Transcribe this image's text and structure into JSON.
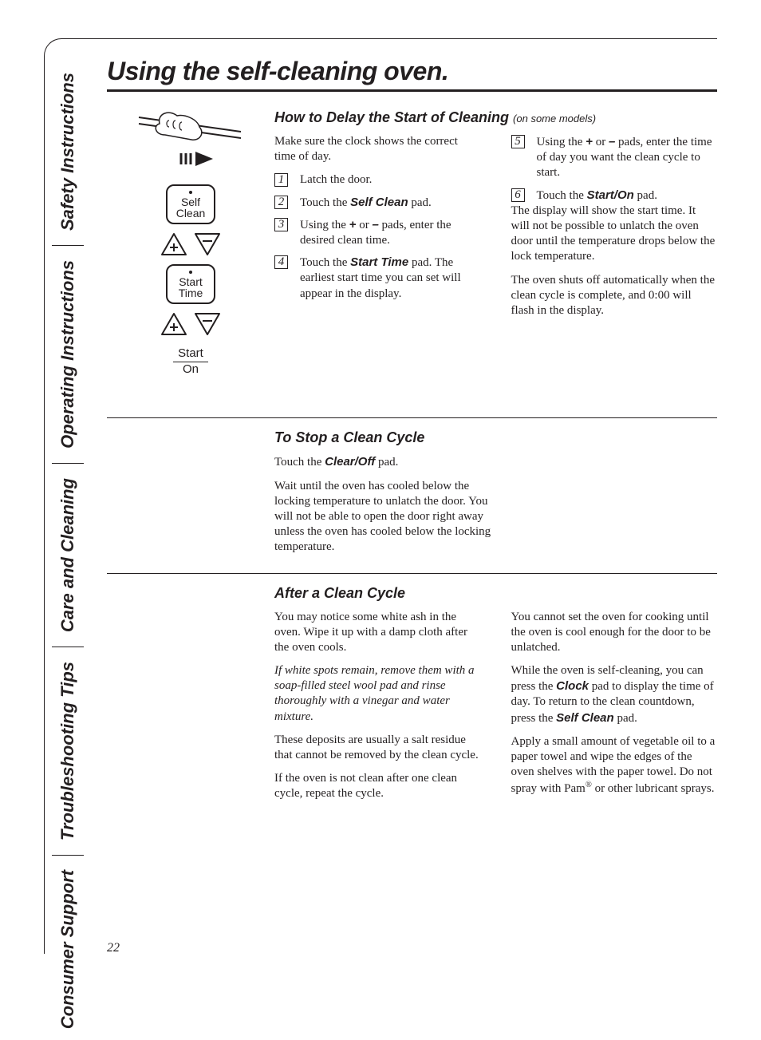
{
  "sidebar": {
    "items": [
      {
        "label": "Safety Instructions"
      },
      {
        "label": "Operating Instructions"
      },
      {
        "label": "Care and Cleaning"
      },
      {
        "label": "Troubleshooting Tips"
      },
      {
        "label": "Consumer Support"
      }
    ]
  },
  "title": "Using the self-cleaning oven.",
  "page_number": "22",
  "diagram": {
    "pad1": {
      "line1": "Self",
      "line2": "Clean"
    },
    "pad2": {
      "line1": "Start",
      "line2": "Time"
    },
    "start_on": {
      "line1": "Start",
      "line2": "On"
    }
  },
  "sections": {
    "delay": {
      "heading": "How to Delay the Start of Cleaning",
      "heading_note": "(on some models)",
      "intro": "Make sure the clock shows the correct time of day.",
      "steps": [
        {
          "n": "1",
          "pre": "Latch the door."
        },
        {
          "n": "2",
          "pre": "Touch the ",
          "bi": "Self Clean",
          "post": " pad."
        },
        {
          "n": "3",
          "pre": "Using the ",
          "bi": "+",
          "mid": " or ",
          "bi2": "–",
          "post": " pads, enter the desired clean time."
        },
        {
          "n": "4",
          "pre": "Touch the ",
          "bi": "Start Time",
          "post": " pad. The earliest start time you can set will appear in the display."
        },
        {
          "n": "5",
          "pre": "Using the ",
          "bi": "+",
          "mid": " or ",
          "bi2": "–",
          "post": " pads, enter the time of day you want the clean cycle to start."
        },
        {
          "n": "6",
          "pre": "Touch the ",
          "bi": "Start/On",
          "post": " pad."
        }
      ],
      "right": [
        "The display will show the start time. It will not be possible to unlatch the oven door until the temperature drops below the lock temperature.",
        "The oven shuts off automatically when the clean cycle is complete, and 0:00 will flash in the display."
      ]
    },
    "stop": {
      "heading": "To Stop a Clean Cycle",
      "p1_pre": "Touch the ",
      "p1_bi": "Clear/Off",
      "p1_post": " pad.",
      "p2": "Wait until the oven has cooled below the locking temperature to unlatch the door. You will not be able to open the door right away unless the oven has cooled below the locking temperature."
    },
    "after": {
      "heading": "After a Clean Cycle",
      "left": {
        "p1": "You may notice some white ash in the oven. Wipe it up with a damp cloth after the oven cools.",
        "p2_italic": "If white spots remain, remove them with a soap-filled steel wool pad and rinse thoroughly with a vinegar and water mixture.",
        "p3": "These deposits are usually a salt residue that cannot be removed by the clean cycle.",
        "p4": "If the oven is not clean after one clean cycle, repeat the cycle."
      },
      "right": {
        "p1": "You cannot set the oven for cooking until the oven is cool enough for the door to be unlatched.",
        "p2_pre": "While the oven is self-cleaning, you can press the ",
        "p2_bi1": "Clock",
        "p2_mid": " pad to display the time of day. To return to the clean countdown, press the ",
        "p2_bi2": "Self Clean",
        "p2_post": " pad.",
        "p3": "Apply a small amount of vegetable oil to a paper towel and wipe the edges of the oven shelves with the paper towel. Do not spray with Pam® or other lubricant sprays."
      }
    }
  },
  "colors": {
    "text": "#231f20",
    "background": "#ffffff"
  }
}
